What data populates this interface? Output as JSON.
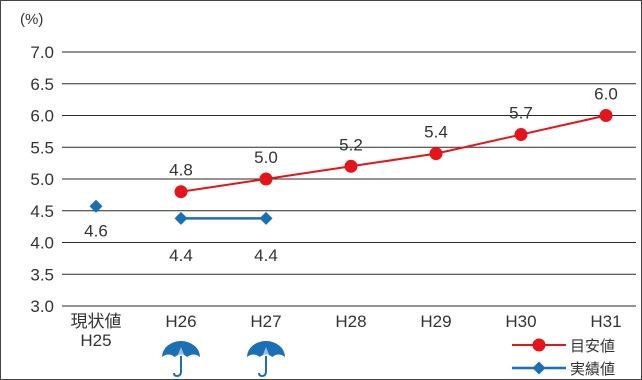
{
  "chart_data": {
    "type": "line",
    "y_unit": "(%)",
    "ylim": [
      3.0,
      7.0
    ],
    "yticks": [
      "3.0",
      "3.5",
      "4.0",
      "4.5",
      "5.0",
      "5.5",
      "6.0",
      "6.5",
      "7.0"
    ],
    "grid": true,
    "categories": [
      [
        "現状値",
        "H25"
      ],
      [
        "H26"
      ],
      [
        "H27"
      ],
      [
        "H28"
      ],
      [
        "H29"
      ],
      [
        "H30"
      ],
      [
        "H31"
      ]
    ],
    "series": [
      {
        "name": "目安値",
        "color": "#e3151a",
        "marker": "circle",
        "values": [
          null,
          4.8,
          5.0,
          5.2,
          5.4,
          5.7,
          6.0
        ],
        "labels": [
          null,
          "4.8",
          "5.0",
          "5.2",
          "5.4",
          "5.7",
          "6.0"
        ]
      },
      {
        "name": "実績値",
        "color": "#1b6fb5",
        "marker": "diamond",
        "values": [
          4.57,
          4.38,
          4.38,
          null,
          null,
          null,
          null
        ],
        "labels": [
          "4.6",
          "4.4",
          "4.4",
          null,
          null,
          null,
          null
        ],
        "connect_from_index": 1
      }
    ],
    "legend": "bottom-right",
    "icons": [
      {
        "category_index": 1,
        "name": "umbrella-icon"
      },
      {
        "category_index": 2,
        "name": "umbrella-icon"
      }
    ],
    "icon_color": "#1b6fb5"
  }
}
